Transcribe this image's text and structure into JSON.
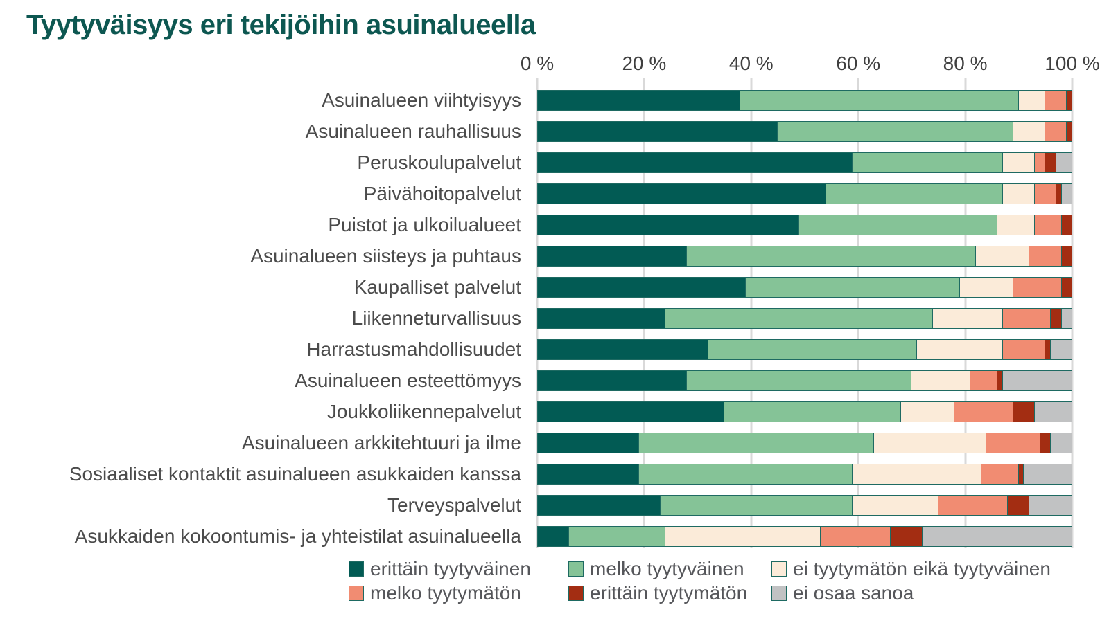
{
  "title": "Tyytyväisyys eri tekijöihin asuinalueella",
  "colors": {
    "title": "#0D5751",
    "axis_text": "#3F3F3F",
    "category_text": "#4B4B4B",
    "legend_text": "#55565A",
    "gridline": "#D9D9D9",
    "segment_border": "#1E6A62",
    "background": "#FFFFFF"
  },
  "chart_data": {
    "type": "bar",
    "orientation": "horizontal",
    "stacked": true,
    "unit": "percent",
    "title": "Tyytyväisyys eri tekijöihin asuinalueella",
    "x_axis": {
      "position": "top",
      "range": [
        0,
        100
      ],
      "tick_values": [
        0,
        20,
        40,
        60,
        80,
        100
      ],
      "tick_labels": [
        "0 %",
        "20 %",
        "40 %",
        "60 %",
        "80 %",
        "100 %"
      ],
      "grid": true
    },
    "categories": [
      "Asuinalueen viihtyisyys",
      "Asuinalueen rauhallisuus",
      "Peruskoulupalvelut",
      "Päivähoitopalvelut",
      "Puistot ja ulkoilualueet",
      "Asuinalueen siisteys ja puhtaus",
      "Kaupalliset palvelut",
      "Liikenneturvallisuus",
      "Harrastusmahdollisuudet",
      "Asuinalueen esteettömyys",
      "Joukkoliikennepalvelut",
      "Asuinalueen arkkitehtuuri ja ilme",
      "Sosiaaliset kontaktit asuinalueen asukkaiden kanssa",
      "Terveyspalvelut",
      "Asukkaiden kokoontumis- ja yhteistilat asuinalueella"
    ],
    "series": [
      {
        "name": "erittäin tyytyväinen",
        "key": "erittain-tyytyvainen",
        "color": "#025B54",
        "values": [
          38,
          45,
          59,
          54,
          49,
          28,
          39,
          24,
          32,
          28,
          35,
          19,
          19,
          23,
          6
        ]
      },
      {
        "name": "melko tyytyväinen",
        "key": "melko-tyytyvainen",
        "color": "#85C397",
        "values": [
          52,
          44,
          28,
          33,
          37,
          54,
          40,
          50,
          39,
          42,
          33,
          44,
          40,
          36,
          18
        ]
      },
      {
        "name": "ei tyytymätön eikä tyytyväinen",
        "key": "ei-tyytymaton-eika-tyytyvainen",
        "color": "#FBEBD9",
        "values": [
          5,
          6,
          6,
          6,
          7,
          10,
          10,
          13,
          16,
          11,
          10,
          21,
          24,
          16,
          29
        ]
      },
      {
        "name": "melko tyytymätön",
        "key": "melko-tyytymaton",
        "color": "#F18C72",
        "values": [
          4,
          4,
          2,
          4,
          5,
          6,
          9,
          9,
          8,
          5,
          11,
          10,
          7,
          13,
          13
        ]
      },
      {
        "name": "erittäin tyytymätön",
        "key": "erittain-tyytymaton",
        "color": "#A32D12",
        "values": [
          1,
          1,
          2,
          1,
          2,
          2,
          2,
          2,
          1,
          1,
          4,
          2,
          1,
          4,
          6
        ]
      },
      {
        "name": "ei osaa sanoa",
        "key": "ei-osaa-sanoa",
        "color": "#C1C2C3",
        "values": [
          0,
          0,
          3,
          2,
          0,
          0,
          0,
          2,
          4,
          13,
          7,
          4,
          9,
          8,
          28
        ]
      }
    ],
    "legend": {
      "position": "bottom",
      "layout_rows": [
        [
          0,
          1,
          2
        ],
        [
          3,
          4,
          5
        ]
      ]
    }
  }
}
